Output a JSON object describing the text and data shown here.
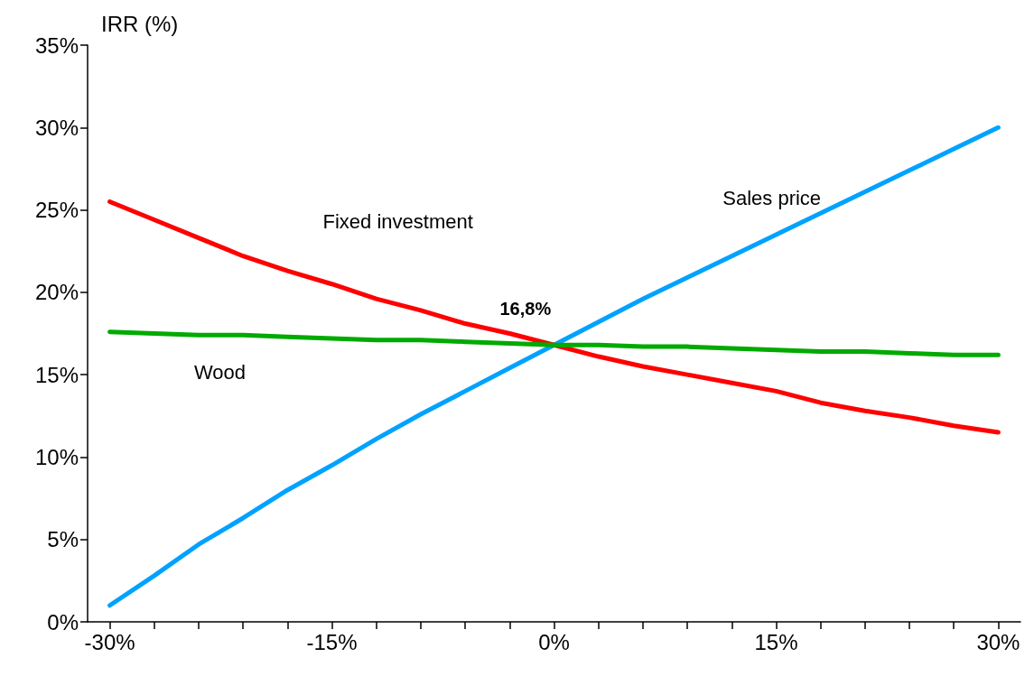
{
  "chart_data": {
    "type": "line",
    "ylabel": "IRR (%)",
    "x": [
      -30,
      -27,
      -24,
      -21,
      -18,
      -15,
      -12,
      -9,
      -6,
      -3,
      0,
      3,
      6,
      9,
      12,
      15,
      18,
      21,
      24,
      27,
      30
    ],
    "series": [
      {
        "name": "Sales price",
        "color": "#00a2ff",
        "values": [
          1.0,
          2.8,
          4.7,
          6.3,
          8.0,
          9.5,
          11.1,
          12.6,
          14.0,
          15.4,
          16.8,
          18.2,
          19.6,
          20.9,
          22.2,
          23.5,
          24.8,
          26.1,
          27.4,
          28.7,
          30.0
        ]
      },
      {
        "name": "Fixed investment",
        "color": "#ff0000",
        "values": [
          25.5,
          24.4,
          23.3,
          22.2,
          21.3,
          20.5,
          19.6,
          18.9,
          18.1,
          17.5,
          16.8,
          16.1,
          15.5,
          15.0,
          14.5,
          14.0,
          13.3,
          12.8,
          12.4,
          11.9,
          11.5
        ]
      },
      {
        "name": "Wood",
        "color": "#00aa00",
        "values": [
          17.6,
          17.5,
          17.4,
          17.4,
          17.3,
          17.2,
          17.1,
          17.1,
          17.0,
          16.9,
          16.8,
          16.8,
          16.7,
          16.7,
          16.6,
          16.5,
          16.4,
          16.4,
          16.3,
          16.2,
          16.2
        ]
      }
    ],
    "annotations": [
      {
        "text": "16,8%",
        "x": 0,
        "y": 16.8
      }
    ],
    "xlim": [
      -31.5,
      31.5
    ],
    "xticks": [
      {
        "value": -30,
        "label": "-30%"
      },
      {
        "value": -27,
        "label": null
      },
      {
        "value": -24,
        "label": null
      },
      {
        "value": -21,
        "label": null
      },
      {
        "value": -18,
        "label": null
      },
      {
        "value": -15,
        "label": "-15%"
      },
      {
        "value": -12,
        "label": null
      },
      {
        "value": -9,
        "label": null
      },
      {
        "value": -6,
        "label": null
      },
      {
        "value": -3,
        "label": null
      },
      {
        "value": 0,
        "label": "0%"
      },
      {
        "value": 3,
        "label": null
      },
      {
        "value": 6,
        "label": null
      },
      {
        "value": 9,
        "label": null
      },
      {
        "value": 12,
        "label": null
      },
      {
        "value": 15,
        "label": "15%"
      },
      {
        "value": 18,
        "label": null
      },
      {
        "value": 21,
        "label": null
      },
      {
        "value": 24,
        "label": null
      },
      {
        "value": 27,
        "label": null
      },
      {
        "value": 30,
        "label": "30%"
      }
    ],
    "ylim": [
      0,
      35
    ],
    "yticks": [
      {
        "value": 0,
        "label": "0%"
      },
      {
        "value": 5,
        "label": "5%"
      },
      {
        "value": 10,
        "label": "10%"
      },
      {
        "value": 15,
        "label": "15%"
      },
      {
        "value": 20,
        "label": "20%"
      },
      {
        "value": 25,
        "label": "25%"
      },
      {
        "value": 30,
        "label": "30%"
      },
      {
        "value": 35,
        "label": "35%"
      }
    ],
    "grid": false,
    "legend": false,
    "marker": "none",
    "line_style": "solid"
  }
}
